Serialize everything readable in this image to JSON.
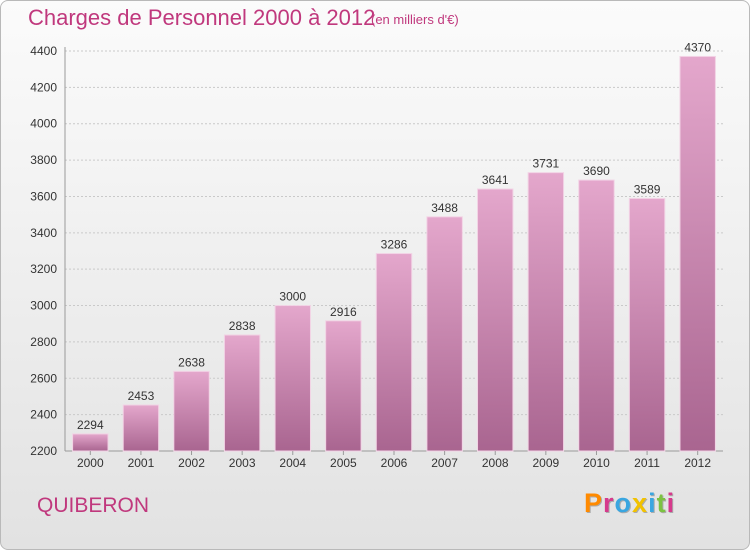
{
  "header": {
    "title": "Charges de Personnel 2000 à 2012",
    "subtitle": "(en milliers d'€)"
  },
  "footer": {
    "town": "QUIBERON",
    "logo_text": "Proxiti"
  },
  "colors": {
    "title": "#c0387d",
    "bar_top": "#e4a7cc",
    "bar_bottom": "#a96590",
    "logo": [
      "#ff8a00",
      "#d63a8c",
      "#3aa6e0",
      "#f2c200",
      "#3aa6e0",
      "#7cc242",
      "#d63a8c"
    ]
  },
  "chart_data": {
    "type": "bar",
    "title": "Charges de Personnel 2000 à 2012",
    "subtitle": "(en milliers d'€)",
    "categories": [
      "2000",
      "2001",
      "2002",
      "2003",
      "2004",
      "2005",
      "2006",
      "2007",
      "2008",
      "2009",
      "2010",
      "2011",
      "2012"
    ],
    "values": [
      2294,
      2453,
      2638,
      2838,
      3000,
      2916,
      3286,
      3488,
      3641,
      3731,
      3690,
      3589,
      4370
    ],
    "ylim": [
      2200,
      4400
    ],
    "yticks": [
      2200,
      2400,
      2600,
      2800,
      3000,
      3200,
      3400,
      3600,
      3800,
      4000,
      4200,
      4400
    ],
    "grid": true,
    "legend": "none"
  }
}
